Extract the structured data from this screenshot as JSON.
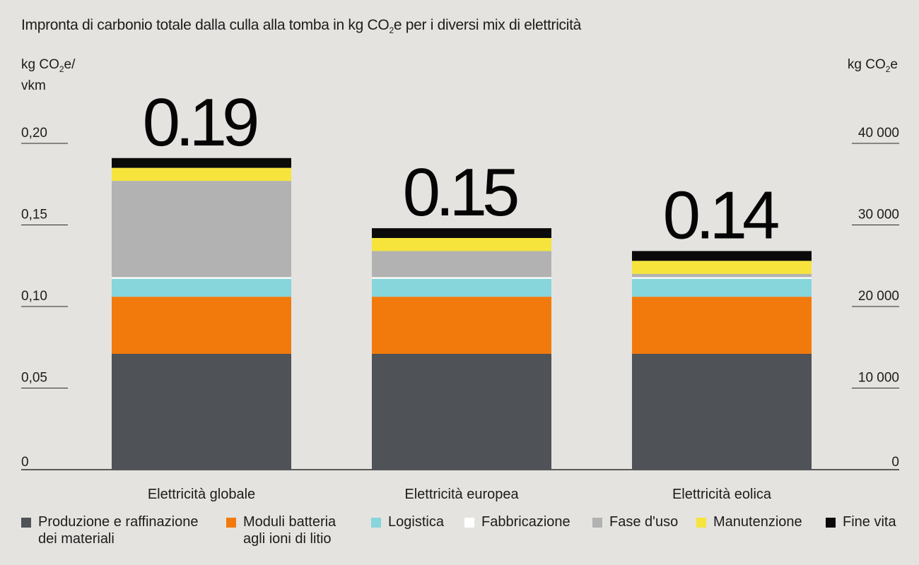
{
  "chart_data": {
    "type": "bar",
    "stacked": true,
    "title_parts": [
      "Impronta di carbonio totale dalla culla alla tomba in kg CO",
      "2",
      "e per i diversi mix di elettricità"
    ],
    "ylabel_left_parts": [
      "kg CO",
      "2",
      "e/",
      "vkm"
    ],
    "ylabel_right_parts": [
      "kg CO",
      "2",
      "e"
    ],
    "ylim": [
      0,
      0.2
    ],
    "yticks_left": [
      "0",
      "0,05",
      "0,10",
      "0,15",
      "0,20"
    ],
    "yticks_left_values": [
      0,
      0.05,
      0.1,
      0.15,
      0.2
    ],
    "yticks_right": [
      "0",
      "10 000",
      "20 000",
      "30 000",
      "40 000"
    ],
    "categories": [
      "Elettricità globale",
      "Elettricità europea",
      "Elettricità eolica"
    ],
    "totals": [
      "0.19",
      "0.15",
      "0.14"
    ],
    "series": [
      {
        "name": "Produzione e raffinazione dei materiali",
        "color": "#4f5257",
        "values": [
          0.071,
          0.071,
          0.071
        ]
      },
      {
        "name": "Moduli batteria agli ioni di litio",
        "color": "#f27a0d",
        "values": [
          0.035,
          0.035,
          0.035
        ]
      },
      {
        "name": "Logistica",
        "color": "#86d6dc",
        "values": [
          0.011,
          0.011,
          0.011
        ]
      },
      {
        "name": "Fabbricazione",
        "color": "#ffffff",
        "values": [
          0.001,
          0.001,
          0.001
        ]
      },
      {
        "name": "Fase d'uso",
        "color": "#b1b2b1",
        "values": [
          0.059,
          0.016,
          0.002
        ]
      },
      {
        "name": "Manutenzione",
        "color": "#f6e43c",
        "values": [
          0.008,
          0.008,
          0.008
        ]
      },
      {
        "name": "Fine vita",
        "color": "#0a0a0a",
        "values": [
          0.006,
          0.006,
          0.006
        ]
      }
    ],
    "legend_lines": [
      [
        "Produzione e raffinazione",
        "dei materiali"
      ],
      [
        "Moduli batteria",
        "agli ioni di litio"
      ],
      [
        "Logistica"
      ],
      [
        "Fabbricazione"
      ],
      [
        "Fase d'uso"
      ],
      [
        "Manutenzione"
      ],
      [
        "Fine vita"
      ]
    ],
    "legend_position": "bottom"
  }
}
